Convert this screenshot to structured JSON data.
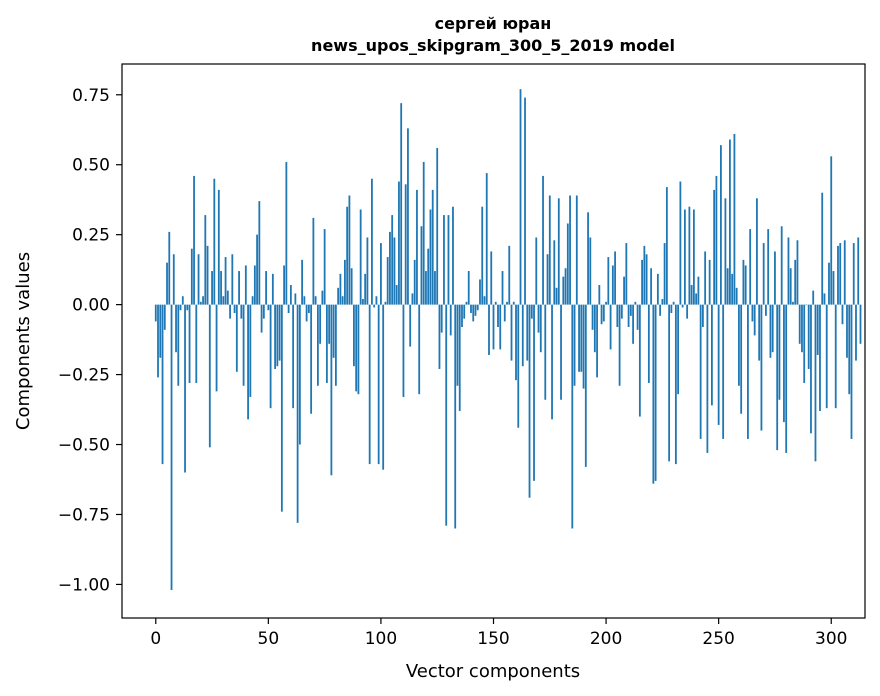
{
  "chart_data": {
    "type": "bar",
    "title_lines": [
      "сергей юран",
      "news_upos_skipgram_300_5_2019 model"
    ],
    "xlabel": "Vector components",
    "ylabel": "Components values",
    "xlim": [
      -15,
      315
    ],
    "ylim": [
      -1.12,
      0.86
    ],
    "xticks": [
      0,
      50,
      100,
      150,
      200,
      250,
      300
    ],
    "yticks": [
      -1.0,
      -0.75,
      -0.5,
      -0.25,
      0.0,
      0.25,
      0.5,
      0.75
    ],
    "ytick_labels": [
      "−1.00",
      "−0.75",
      "−0.50",
      "−0.25",
      "0.00",
      "0.25",
      "0.50",
      "0.75"
    ],
    "bar_color": "#1f77b4",
    "values": [
      -0.06,
      -0.26,
      -0.19,
      -0.57,
      -0.09,
      0.15,
      0.26,
      -1.02,
      0.18,
      -0.17,
      -0.29,
      -0.02,
      0.03,
      -0.6,
      -0.02,
      -0.28,
      0.2,
      0.46,
      -0.28,
      0.18,
      0.01,
      0.03,
      0.32,
      0.21,
      -0.51,
      0.12,
      0.45,
      -0.31,
      0.41,
      0.12,
      0.03,
      0.17,
      0.05,
      -0.05,
      0.18,
      -0.03,
      -0.24,
      0.12,
      -0.05,
      -0.29,
      0.14,
      -0.41,
      -0.33,
      0.03,
      0.14,
      0.25,
      0.37,
      -0.1,
      -0.05,
      0.12,
      -0.02,
      -0.37,
      0.11,
      -0.23,
      -0.22,
      -0.2,
      -0.74,
      0.14,
      0.51,
      -0.03,
      0.07,
      -0.37,
      0.04,
      -0.78,
      -0.5,
      0.16,
      0.03,
      -0.06,
      -0.03,
      -0.39,
      0.31,
      0.03,
      -0.29,
      -0.14,
      0.05,
      0.27,
      -0.28,
      -0.14,
      -0.61,
      -0.19,
      -0.29,
      0.06,
      0.11,
      0.03,
      0.16,
      0.35,
      0.39,
      0.13,
      -0.22,
      -0.31,
      -0.32,
      0.34,
      0.02,
      0.11,
      0.24,
      -0.57,
      0.45,
      -0.01,
      0.03,
      -0.57,
      0.22,
      -0.59,
      0.01,
      0.17,
      0.26,
      0.32,
      0.24,
      0.07,
      0.44,
      0.72,
      -0.33,
      0.43,
      0.63,
      -0.15,
      0.04,
      0.16,
      0.41,
      -0.32,
      0.28,
      0.51,
      0.12,
      0.2,
      0.34,
      0.41,
      0.12,
      0.56,
      -0.23,
      -0.1,
      0.32,
      -0.79,
      0.32,
      -0.11,
      0.35,
      -0.8,
      -0.29,
      -0.38,
      -0.08,
      -0.05,
      0.01,
      0.12,
      -0.03,
      -0.06,
      -0.04,
      -0.02,
      0.09,
      0.35,
      0.03,
      0.47,
      -0.18,
      0.19,
      -0.16,
      0.01,
      -0.08,
      -0.16,
      0.12,
      -0.06,
      0.01,
      0.21,
      -0.2,
      0.01,
      -0.27,
      -0.44,
      0.77,
      -0.22,
      0.74,
      -0.2,
      -0.69,
      -0.05,
      -0.63,
      0.24,
      -0.1,
      -0.17,
      0.46,
      -0.34,
      0.18,
      0.39,
      -0.41,
      0.23,
      0.06,
      0.38,
      -0.34,
      0.1,
      0.13,
      0.29,
      0.39,
      -0.8,
      -0.29,
      0.39,
      -0.24,
      -0.24,
      -0.3,
      -0.58,
      0.33,
      0.24,
      -0.09,
      -0.17,
      -0.26,
      0.07,
      -0.07,
      -0.06,
      0.01,
      0.17,
      -0.16,
      0.14,
      0.19,
      -0.08,
      -0.29,
      -0.05,
      0.1,
      0.22,
      -0.08,
      -0.04,
      -0.14,
      0.01,
      -0.09,
      -0.4,
      0.16,
      0.21,
      0.18,
      -0.28,
      0.13,
      -0.64,
      -0.63,
      0.11,
      -0.04,
      0.02,
      0.22,
      0.42,
      -0.56,
      -0.03,
      0.01,
      -0.57,
      -0.32,
      0.44,
      -0.01,
      0.34,
      -0.05,
      0.35,
      0.07,
      0.34,
      0.04,
      0.1,
      -0.48,
      -0.08,
      0.19,
      -0.53,
      0.16,
      -0.36,
      0.41,
      0.46,
      -0.43,
      0.57,
      -0.48,
      0.38,
      0.13,
      0.59,
      0.11,
      0.61,
      0.06,
      -0.29,
      -0.39,
      0.16,
      0.14,
      -0.48,
      0.27,
      -0.06,
      -0.11,
      0.38,
      -0.2,
      -0.45,
      0.22,
      -0.04,
      0.27,
      -0.19,
      -0.17,
      0.19,
      -0.52,
      -0.34,
      0.28,
      -0.42,
      -0.53,
      0.24,
      0.13,
      0.01,
      0.16,
      0.23,
      -0.14,
      -0.17,
      -0.28,
      0.0,
      -0.23,
      -0.46,
      0.05,
      -0.56,
      -0.18,
      -0.38,
      0.4,
      0.04,
      -0.37,
      0.15,
      0.53,
      0.12,
      -0.37,
      0.21,
      0.22,
      -0.07,
      0.23,
      -0.19,
      -0.32,
      -0.48,
      0.22,
      -0.2,
      0.24,
      -0.14
    ],
    "grid": false,
    "legend": false
  }
}
